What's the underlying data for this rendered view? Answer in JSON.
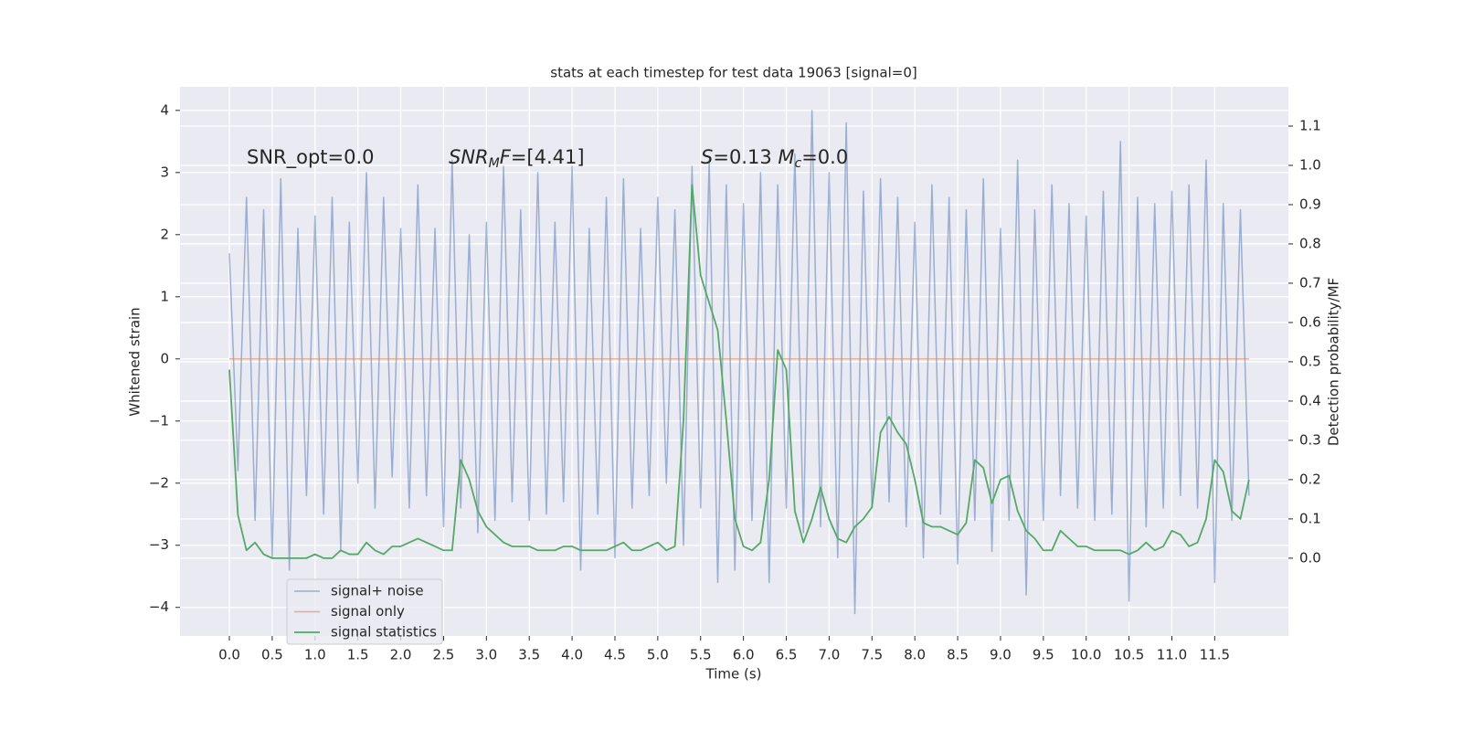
{
  "chart_data": {
    "type": "line",
    "title": "stats at each timestep for test data 19063 [signal=0]",
    "xlabel": "Time (s)",
    "ylabel": "Whitened strain",
    "y2label": "Detection probability/MF",
    "x": [
      0,
      0.1,
      0.2,
      0.3,
      0.4,
      0.5,
      0.6,
      0.7,
      0.8,
      0.9,
      1,
      1.1,
      1.2,
      1.3,
      1.4,
      1.5,
      1.6,
      1.7,
      1.8,
      1.9,
      2,
      2.1,
      2.2,
      2.3,
      2.4,
      2.5,
      2.6,
      2.7,
      2.8,
      2.9,
      3,
      3.1,
      3.2,
      3.3,
      3.4,
      3.5,
      3.6,
      3.7,
      3.8,
      3.9,
      4,
      4.1,
      4.2,
      4.3,
      4.4,
      4.5,
      4.6,
      4.7,
      4.8,
      4.9,
      5,
      5.1,
      5.2,
      5.3,
      5.4,
      5.5,
      5.6,
      5.7,
      5.8,
      5.9,
      6,
      6.1,
      6.2,
      6.3,
      6.4,
      6.5,
      6.6,
      6.7,
      6.8,
      6.9,
      7,
      7.1,
      7.2,
      7.3,
      7.4,
      7.5,
      7.6,
      7.7,
      7.8,
      7.9,
      8,
      8.1,
      8.2,
      8.3,
      8.4,
      8.5,
      8.6,
      8.7,
      8.8,
      8.9,
      9,
      9.1,
      9.2,
      9.3,
      9.4,
      9.5,
      9.6,
      9.7,
      9.8,
      9.9,
      10,
      10.1,
      10.2,
      10.3,
      10.4,
      10.5,
      10.6,
      10.7,
      10.8,
      10.9,
      11,
      11.1,
      11.2,
      11.3,
      11.4,
      11.5,
      11.6,
      11.7,
      11.8,
      11.9
    ],
    "series": [
      {
        "name": "signal+ noise",
        "color": "#4c72b0",
        "axis": "y",
        "values": [
          1.7,
          -1.8,
          2.6,
          -2.6,
          2.4,
          -3.2,
          2.9,
          -3.4,
          2.1,
          -2.2,
          2.3,
          -2.5,
          2.6,
          -3.1,
          2.2,
          -2.0,
          3.0,
          -2.4,
          2.6,
          -1.9,
          2.1,
          -2.4,
          2.8,
          -2.2,
          2.1,
          -2.7,
          3.2,
          -2.4,
          2.0,
          -2.8,
          2.2,
          -2.6,
          3.1,
          -2.3,
          2.4,
          -2.6,
          3.0,
          -2.5,
          2.2,
          -2.3,
          3.1,
          -3.4,
          2.1,
          -2.5,
          2.6,
          -3.2,
          2.9,
          -2.4,
          2.1,
          -2.2,
          2.6,
          -2.0,
          2.4,
          -3.0,
          3.1,
          -2.4,
          3.2,
          -3.6,
          2.8,
          -3.4,
          2.5,
          -2.6,
          3.0,
          -3.6,
          2.8,
          -2.4,
          3.3,
          -2.8,
          4.0,
          -2.7,
          3.0,
          -3.2,
          3.8,
          -4.1,
          2.7,
          -2.4,
          2.9,
          -2.3,
          2.6,
          -2.7,
          2.2,
          -3.2,
          2.8,
          -2.5,
          2.6,
          -3.3,
          2.4,
          -2.6,
          2.9,
          -3.1,
          2.1,
          -2.6,
          3.2,
          -3.8,
          2.4,
          -2.6,
          2.8,
          -2.2,
          2.5,
          -2.4,
          2.3,
          -2.6,
          2.7,
          -2.5,
          3.5,
          -3.9,
          2.6,
          -2.7,
          2.5,
          -2.4,
          2.7,
          -2.2,
          2.8,
          -2.4,
          3.2,
          -3.6,
          2.5,
          -2.6,
          2.4,
          -2.2
        ]
      },
      {
        "name": "signal only",
        "color": "#dd8452",
        "axis": "y",
        "values": [
          0,
          0,
          0,
          0,
          0,
          0,
          0,
          0,
          0,
          0,
          0,
          0,
          0,
          0,
          0,
          0,
          0,
          0,
          0,
          0,
          0,
          0,
          0,
          0,
          0,
          0,
          0,
          0,
          0,
          0,
          0,
          0,
          0,
          0,
          0,
          0,
          0,
          0,
          0,
          0,
          0,
          0,
          0,
          0,
          0,
          0,
          0,
          0,
          0,
          0,
          0,
          0,
          0,
          0,
          0,
          0,
          0,
          0,
          0,
          0,
          0,
          0,
          0,
          0,
          0,
          0,
          0,
          0,
          0,
          0,
          0,
          0,
          0,
          0,
          0,
          0,
          0,
          0,
          0,
          0,
          0,
          0,
          0,
          0,
          0,
          0,
          0,
          0,
          0,
          0,
          0,
          0,
          0,
          0,
          0,
          0,
          0,
          0,
          0,
          0,
          0,
          0,
          0,
          0,
          0,
          0,
          0,
          0,
          0,
          0,
          0,
          0,
          0,
          0,
          0,
          0,
          0,
          0,
          0,
          0
        ]
      },
      {
        "name": "signal statistics",
        "color": "#55a868",
        "axis": "y2",
        "values": [
          0.48,
          0.11,
          0.02,
          0.04,
          0.01,
          0,
          0,
          0,
          0,
          0,
          0.01,
          0,
          0,
          0.02,
          0.01,
          0.01,
          0.04,
          0.02,
          0.01,
          0.03,
          0.03,
          0.04,
          0.05,
          0.04,
          0.03,
          0.02,
          0.02,
          0.25,
          0.2,
          0.12,
          0.08,
          0.06,
          0.04,
          0.03,
          0.03,
          0.03,
          0.02,
          0.02,
          0.02,
          0.03,
          0.03,
          0.02,
          0.02,
          0.02,
          0.02,
          0.03,
          0.04,
          0.02,
          0.02,
          0.03,
          0.04,
          0.02,
          0.03,
          0.35,
          0.95,
          0.72,
          0.65,
          0.58,
          0.35,
          0.1,
          0.03,
          0.02,
          0.04,
          0.2,
          0.53,
          0.48,
          0.12,
          0.04,
          0.1,
          0.18,
          0.1,
          0.05,
          0.04,
          0.08,
          0.1,
          0.13,
          0.32,
          0.36,
          0.32,
          0.29,
          0.2,
          0.09,
          0.08,
          0.08,
          0.07,
          0.06,
          0.09,
          0.25,
          0.23,
          0.14,
          0.2,
          0.21,
          0.12,
          0.07,
          0.05,
          0.02,
          0.02,
          0.07,
          0.05,
          0.03,
          0.03,
          0.02,
          0.02,
          0.02,
          0.02,
          0.01,
          0.02,
          0.04,
          0.02,
          0.03,
          0.07,
          0.06,
          0.03,
          0.04,
          0.1,
          0.25,
          0.22,
          0.12,
          0.1,
          0.2
        ]
      }
    ],
    "annotations": [
      [
        {
          "text": "SNR_opt=0.0"
        }
      ],
      [
        {
          "text": "SNR",
          "italic": true
        },
        {
          "text": "M",
          "italic": true,
          "sub": true
        },
        {
          "text": "F",
          "italic": true
        },
        {
          "text": "=[4.41]"
        }
      ],
      [
        {
          "text": "S",
          "italic": true
        },
        {
          "text": "=0.13   "
        },
        {
          "text": "M",
          "italic": true
        },
        {
          "text": "c",
          "italic": true,
          "sub": true
        },
        {
          "text": "=0.0"
        }
      ]
    ],
    "xlim": [
      -0.576,
      12.36
    ],
    "ylim": [
      -4.46,
      4.38
    ],
    "y2lim": [
      -0.198,
      1.2
    ],
    "xticks": [
      {
        "value": 0,
        "label": "0.0"
      },
      {
        "value": 0.5,
        "label": "0.5"
      },
      {
        "value": 1,
        "label": "1.0"
      },
      {
        "value": 1.5,
        "label": "1.5"
      },
      {
        "value": 2,
        "label": "2.0"
      },
      {
        "value": 2.5,
        "label": "2.5"
      },
      {
        "value": 3,
        "label": "3.0"
      },
      {
        "value": 3.5,
        "label": "3.5"
      },
      {
        "value": 4,
        "label": "4.0"
      },
      {
        "value": 4.5,
        "label": "4.5"
      },
      {
        "value": 5,
        "label": "5.0"
      },
      {
        "value": 5.5,
        "label": "5.5"
      },
      {
        "value": 6,
        "label": "6.0"
      },
      {
        "value": 6.5,
        "label": "6.5"
      },
      {
        "value": 7,
        "label": "7.0"
      },
      {
        "value": 7.5,
        "label": "7.5"
      },
      {
        "value": 8,
        "label": "8.0"
      },
      {
        "value": 8.5,
        "label": "8.5"
      },
      {
        "value": 9,
        "label": "9.0"
      },
      {
        "value": 9.5,
        "label": "9.5"
      },
      {
        "value": 10,
        "label": "10.0"
      },
      {
        "value": 10.5,
        "label": "10.5"
      },
      {
        "value": 11,
        "label": "11.0"
      },
      {
        "value": 11.5,
        "label": "11.5"
      }
    ],
    "yticks": [
      {
        "value": -4,
        "label": "−4"
      },
      {
        "value": -3,
        "label": "−3"
      },
      {
        "value": -2,
        "label": "−2"
      },
      {
        "value": -1,
        "label": "−1"
      },
      0,
      1,
      2,
      3,
      4
    ],
    "y2ticks": [
      {
        "value": 0,
        "label": "0.0"
      },
      0.1,
      0.2,
      0.3,
      0.4,
      0.5,
      0.6,
      0.7,
      0.8,
      0.9,
      {
        "value": 1,
        "label": "1.0"
      },
      1.1
    ],
    "grid": true,
    "legend": "lower left",
    "background": "#eaeaf2"
  }
}
